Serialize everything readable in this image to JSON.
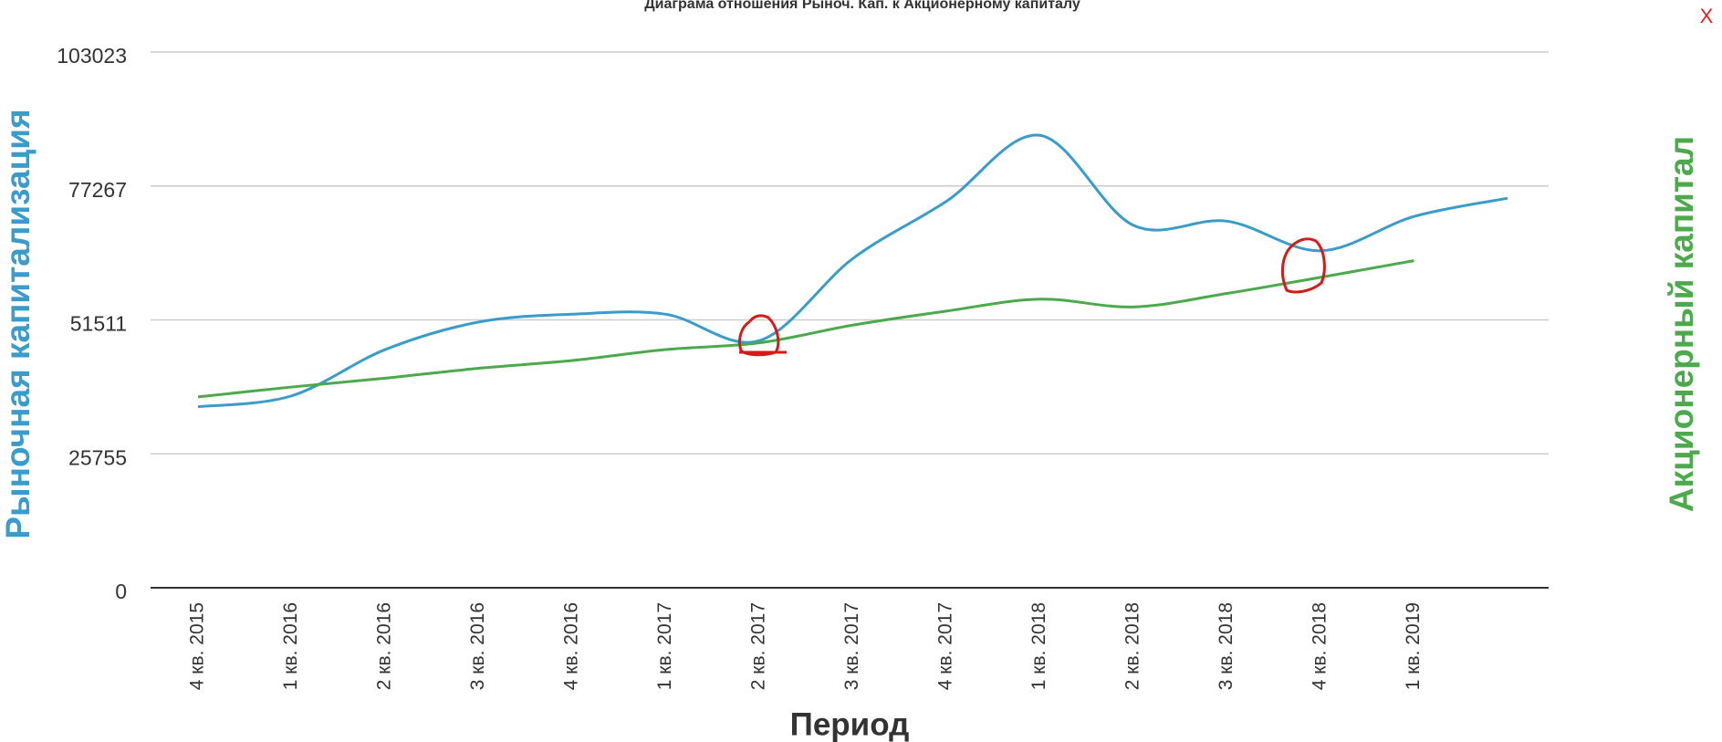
{
  "chart_data": {
    "type": "line",
    "title": "Диаграма отношения Рыноч. Кап. к Акционерному капиталу",
    "y_label": "Рыночная капитализация",
    "y2_label": "Акционерный капитал",
    "x_label": "Период",
    "close_button": "X",
    "categories": [
      "4 кв. 2015",
      "1 кв. 2016",
      "2 кв. 2016",
      "3 кв. 2016",
      "4 кв. 2016",
      "1 кв. 2017",
      "2 кв. 2017",
      "3 кв. 2017",
      "4 кв. 2017",
      "1 кв. 2018",
      "2 кв. 2018",
      "3 кв. 2018",
      "4 кв. 2018",
      "1 кв. 2019",
      null
    ],
    "series": [
      {
        "name": "Рыночная капитализация",
        "color": "#3a9ccb",
        "values": [
          34800,
          36900,
          45800,
          51100,
          52600,
          52600,
          47500,
          63300,
          74300,
          87000,
          69700,
          70500,
          64800,
          71400,
          74900
        ]
      },
      {
        "name": "Акционерный капитал",
        "color": "#4caa4c",
        "values": [
          36700,
          38600,
          40300,
          42200,
          43700,
          45800,
          47100,
          50500,
          53200,
          55500,
          54000,
          56600,
          59700,
          62900,
          null
        ]
      }
    ],
    "ylim": [
      0,
      103023
    ],
    "yticks": [
      0,
      25755,
      51511,
      77267,
      103023
    ],
    "grid": true
  }
}
